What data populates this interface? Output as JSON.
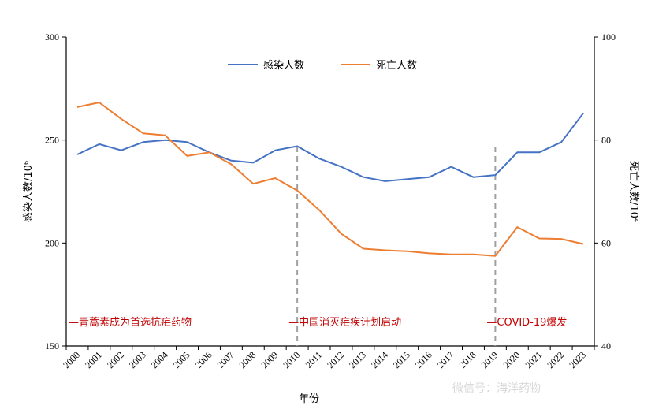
{
  "chart_data": {
    "type": "line",
    "xlabel": "年份",
    "ylabel_left": "感染人数/10⁶",
    "ylabel_right": "死亡人数/10⁴",
    "y_left_range": [
      150,
      300
    ],
    "y_left_ticks": [
      "150",
      "200",
      "250",
      "300"
    ],
    "y_right_range": [
      40,
      100
    ],
    "y_right_ticks": [
      "40",
      "60",
      "80",
      "100"
    ],
    "grid": false,
    "legend_position": "top-center",
    "categories": [
      "2000",
      "2001",
      "2002",
      "2003",
      "2004",
      "2005",
      "2006",
      "2007",
      "2008",
      "2009",
      "2010",
      "2011",
      "2012",
      "2013",
      "2014",
      "2015",
      "2016",
      "2017",
      "2018",
      "2019",
      "2020",
      "2021",
      "2022",
      "2023"
    ],
    "series": [
      {
        "name": "感染人数",
        "axis": "left",
        "color": "#4472c4",
        "values": [
          243,
          248,
          245,
          249,
          250,
          249,
          244,
          240,
          239,
          245,
          247,
          241,
          237,
          232,
          230,
          231,
          232,
          237,
          232,
          233,
          244,
          244,
          249,
          263
        ]
      },
      {
        "name": "死亡人数",
        "axis": "right",
        "color": "#ed7d31",
        "values": [
          86.4,
          87.3,
          84.1,
          81.3,
          80.9,
          76.9,
          77.6,
          75.3,
          71.5,
          72.6,
          70.2,
          66.4,
          61.8,
          58.9,
          58.6,
          58.4,
          58.0,
          57.8,
          57.8,
          57.5,
          63.1,
          60.9,
          60.8,
          59.8
        ]
      }
    ],
    "annotations": [
      {
        "text": "—青蒿素成为首选抗疟药物",
        "at": "2000",
        "marker_line": false
      },
      {
        "text": "—中国消灭疟疾计划启动",
        "at": "2010",
        "marker_line": true
      },
      {
        "text": "—COVID-19爆发",
        "at": "2019",
        "marker_line": true
      }
    ]
  },
  "watermark": "微信号：海洋药物"
}
